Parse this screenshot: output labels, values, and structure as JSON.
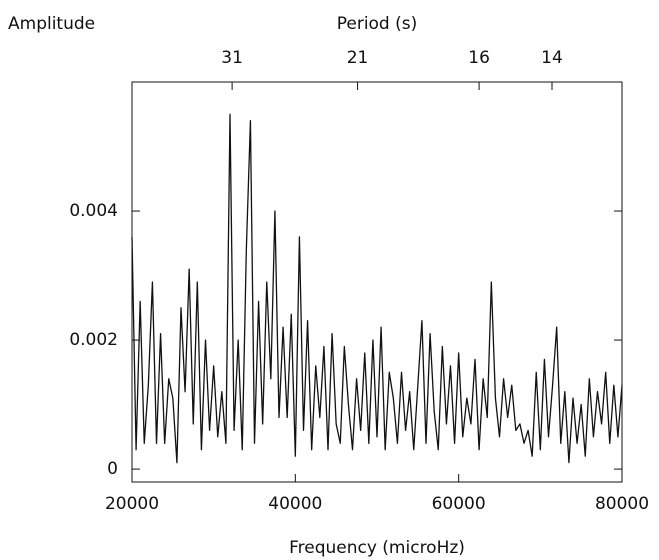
{
  "chart_data": {
    "type": "line",
    "y_label": "Amplitude",
    "x_label": "Frequency (microHz)",
    "x2_label": "Period (s)",
    "x2_scale": "reciprocal",
    "color": "#111111",
    "xlim": [
      20000,
      80000
    ],
    "ylim": [
      -0.0002,
      0.006
    ],
    "xticks": [
      20000,
      40000,
      60000,
      80000
    ],
    "yticks": [
      0,
      0.002,
      0.004
    ],
    "x2ticks": [
      31,
      21,
      16,
      14
    ],
    "x": [
      20000,
      20500,
      21000,
      21500,
      22000,
      22500,
      23000,
      23500,
      24000,
      24500,
      25000,
      25500,
      26000,
      26500,
      27000,
      27500,
      28000,
      28500,
      29000,
      29500,
      30000,
      30500,
      31000,
      31500,
      32000,
      32500,
      33000,
      33500,
      34000,
      34500,
      35000,
      35500,
      36000,
      36500,
      37000,
      37500,
      38000,
      38500,
      39000,
      39500,
      40000,
      40500,
      41000,
      41500,
      42000,
      42500,
      43000,
      43500,
      44000,
      44500,
      45000,
      45500,
      46000,
      46500,
      47000,
      47500,
      48000,
      48500,
      49000,
      49500,
      50000,
      50500,
      51000,
      51500,
      52000,
      52500,
      53000,
      53500,
      54000,
      54500,
      55000,
      55500,
      56000,
      56500,
      57000,
      57500,
      58000,
      58500,
      59000,
      59500,
      60000,
      60500,
      61000,
      61500,
      62000,
      62500,
      63000,
      63500,
      64000,
      64500,
      65000,
      65500,
      66000,
      66500,
      67000,
      67500,
      68000,
      68500,
      69000,
      69500,
      70000,
      70500,
      71000,
      71500,
      72000,
      72500,
      73000,
      73500,
      74000,
      74500,
      75000,
      75500,
      76000,
      76500,
      77000,
      77500,
      78000,
      78500,
      79000,
      79500,
      80000
    ],
    "values": [
      0.0036,
      0.0003,
      0.0026,
      0.0004,
      0.0013,
      0.0029,
      0.0004,
      0.0021,
      0.0004,
      0.0014,
      0.0011,
      0.0001,
      0.0025,
      0.0012,
      0.0031,
      0.0007,
      0.0029,
      0.0003,
      0.002,
      0.0006,
      0.0016,
      0.0005,
      0.0012,
      0.0004,
      0.0055,
      0.0006,
      0.002,
      0.0003,
      0.0034,
      0.0054,
      0.0004,
      0.0026,
      0.0007,
      0.0029,
      0.0014,
      0.004,
      0.0008,
      0.0022,
      0.0008,
      0.0024,
      0.0002,
      0.0036,
      0.0006,
      0.0023,
      0.0003,
      0.0016,
      0.0008,
      0.0019,
      0.0003,
      0.0021,
      0.0007,
      0.0004,
      0.0019,
      0.001,
      0.0003,
      0.0014,
      0.0006,
      0.0018,
      0.0004,
      0.002,
      0.0005,
      0.0022,
      0.0003,
      0.0015,
      0.0011,
      0.0004,
      0.0015,
      0.0006,
      0.0012,
      0.0003,
      0.0013,
      0.0023,
      0.0004,
      0.0021,
      0.0009,
      0.0003,
      0.0019,
      0.0007,
      0.0016,
      0.0004,
      0.0018,
      0.0005,
      0.0011,
      0.0007,
      0.0017,
      0.0003,
      0.0014,
      0.0008,
      0.0029,
      0.0011,
      0.0005,
      0.0014,
      0.0008,
      0.0013,
      0.0006,
      0.0007,
      0.0004,
      0.0006,
      0.0002,
      0.0015,
      0.0003,
      0.0017,
      0.0005,
      0.0013,
      0.0022,
      0.0004,
      0.0012,
      0.0001,
      0.0011,
      0.0004,
      0.001,
      0.0002,
      0.0014,
      0.0005,
      0.0012,
      0.0007,
      0.0015,
      0.0004,
      0.0013,
      0.0005,
      0.0013
    ]
  }
}
